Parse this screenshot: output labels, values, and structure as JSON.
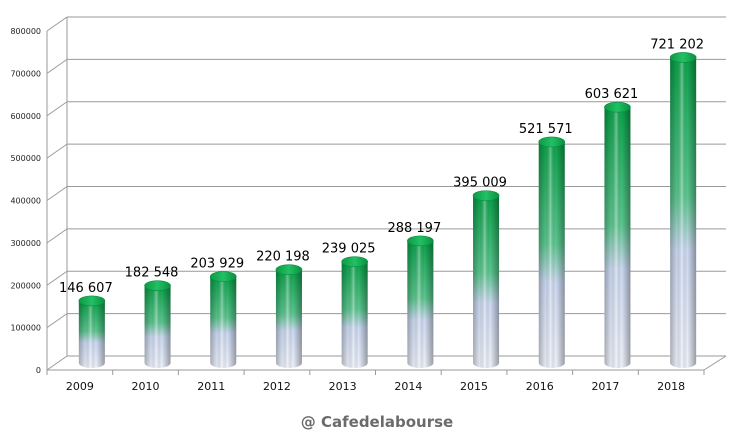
{
  "chart_data": {
    "type": "bar",
    "categories": [
      "2009",
      "2010",
      "2011",
      "2012",
      "2013",
      "2014",
      "2015",
      "2016",
      "2017",
      "2018"
    ],
    "values": [
      146607,
      182548,
      203929,
      220198,
      239025,
      288197,
      395009,
      521571,
      603621,
      721202
    ],
    "data_labels": [
      "146 607",
      "182 548",
      "203 929",
      "220 198",
      "239 025",
      "288 197",
      "395 009",
      "521 571",
      "603 621",
      "721 202"
    ],
    "yticks": [
      0,
      100000,
      200000,
      300000,
      400000,
      500000,
      600000,
      700000,
      800000
    ],
    "ytick_labels": [
      "0",
      "100000",
      "200000",
      "300000",
      "400000",
      "500000",
      "600000",
      "700000",
      "800000"
    ],
    "ylim": [
      0,
      800000
    ],
    "grid": true,
    "bar_style": "3d-cylinder",
    "colors": {
      "top": "#0aa34a",
      "bottom": "#c9d6f2"
    },
    "title": "",
    "xlabel": "",
    "ylabel": ""
  },
  "credit": "@ Cafedelabourse"
}
